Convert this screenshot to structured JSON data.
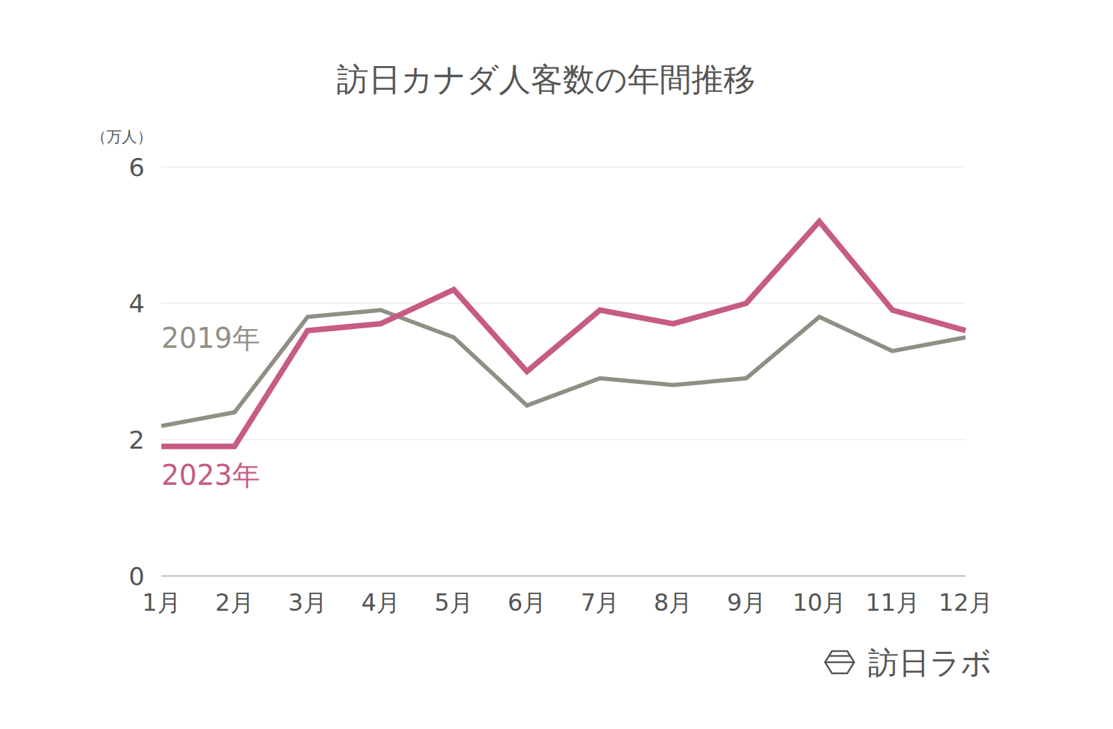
{
  "chart_data": {
    "type": "line",
    "title": "訪日カナダ人客数の年間推移",
    "y_label": "（万人）",
    "categories": [
      "1月",
      "2月",
      "3月",
      "4月",
      "5月",
      "6月",
      "7月",
      "8月",
      "9月",
      "10月",
      "11月",
      "12月"
    ],
    "series": [
      {
        "name": "2019年",
        "color": "#918e85",
        "values": [
          2.2,
          2.4,
          3.8,
          3.9,
          3.5,
          2.5,
          2.9,
          2.8,
          2.9,
          3.8,
          3.3,
          3.5
        ]
      },
      {
        "name": "2023年",
        "color": "#c65b84",
        "values": [
          1.9,
          1.9,
          3.6,
          3.7,
          4.2,
          3.0,
          3.9,
          3.7,
          4.0,
          5.2,
          3.9,
          3.6
        ]
      }
    ],
    "ylim": [
      0,
      6
    ],
    "yticks": [
      0,
      2,
      4,
      6
    ],
    "grid": true,
    "source": "訪日ラボ"
  }
}
